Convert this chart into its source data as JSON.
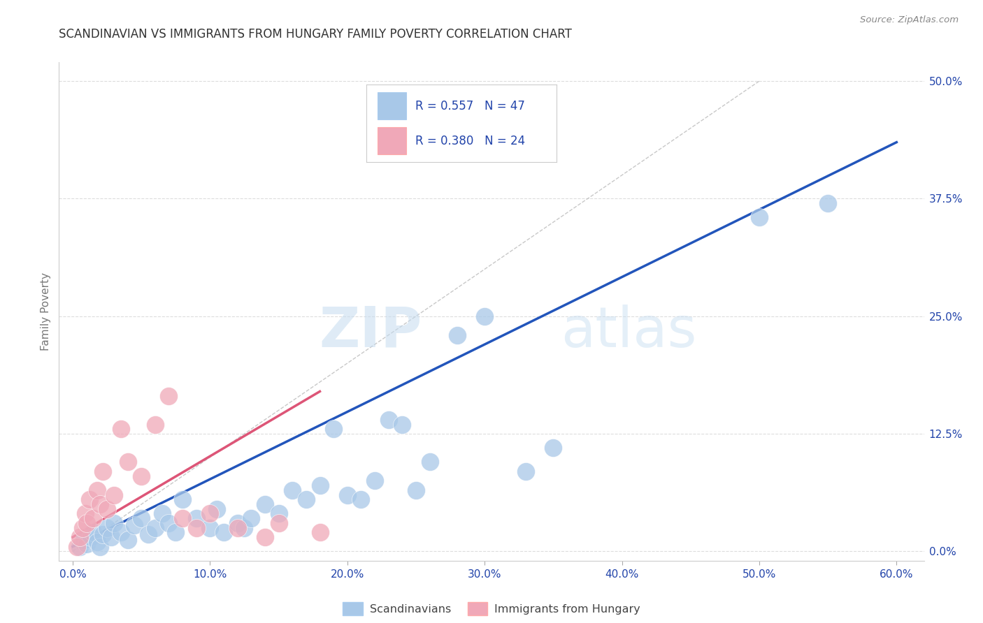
{
  "title": "SCANDINAVIAN VS IMMIGRANTS FROM HUNGARY FAMILY POVERTY CORRELATION CHART",
  "source": "Source: ZipAtlas.com",
  "xlabel_ticks": [
    "0.0%",
    "10.0%",
    "20.0%",
    "30.0%",
    "40.0%",
    "50.0%",
    "60.0%"
  ],
  "xlabel_vals": [
    0.0,
    10.0,
    20.0,
    30.0,
    40.0,
    50.0,
    60.0
  ],
  "ylabel": "Family Poverty",
  "ylabel_ticks": [
    "0.0%",
    "12.5%",
    "25.0%",
    "37.5%",
    "50.0%"
  ],
  "ylabel_vals": [
    0.0,
    12.5,
    25.0,
    37.5,
    50.0
  ],
  "xlim": [
    -1.0,
    62.0
  ],
  "ylim": [
    -1.0,
    52.0
  ],
  "blue_color": "#A8C8E8",
  "pink_color": "#F0A8B8",
  "blue_line_color": "#2255BB",
  "pink_line_color": "#DD5577",
  "diagonal_color": "#BBBBBB",
  "legend_r_blue": "0.557",
  "legend_n_blue": "47",
  "legend_r_pink": "0.380",
  "legend_n_pink": "24",
  "legend_text_color": "#2244AA",
  "watermark_zip": "ZIP",
  "watermark_atlas": "atlas",
  "scandinavians": [
    [
      0.5,
      0.5
    ],
    [
      0.8,
      1.2
    ],
    [
      1.0,
      0.8
    ],
    [
      1.3,
      1.5
    ],
    [
      1.5,
      2.0
    ],
    [
      1.8,
      1.0
    ],
    [
      2.0,
      0.5
    ],
    [
      2.2,
      1.8
    ],
    [
      2.5,
      2.5
    ],
    [
      2.8,
      1.5
    ],
    [
      3.0,
      3.0
    ],
    [
      3.5,
      2.0
    ],
    [
      4.0,
      1.2
    ],
    [
      4.5,
      2.8
    ],
    [
      5.0,
      3.5
    ],
    [
      5.5,
      1.8
    ],
    [
      6.0,
      2.5
    ],
    [
      6.5,
      4.0
    ],
    [
      7.0,
      3.0
    ],
    [
      7.5,
      2.0
    ],
    [
      8.0,
      5.5
    ],
    [
      9.0,
      3.5
    ],
    [
      10.0,
      2.5
    ],
    [
      10.5,
      4.5
    ],
    [
      11.0,
      2.0
    ],
    [
      12.0,
      3.0
    ],
    [
      12.5,
      2.5
    ],
    [
      13.0,
      3.5
    ],
    [
      14.0,
      5.0
    ],
    [
      15.0,
      4.0
    ],
    [
      16.0,
      6.5
    ],
    [
      17.0,
      5.5
    ],
    [
      18.0,
      7.0
    ],
    [
      19.0,
      13.0
    ],
    [
      20.0,
      6.0
    ],
    [
      21.0,
      5.5
    ],
    [
      22.0,
      7.5
    ],
    [
      23.0,
      14.0
    ],
    [
      24.0,
      13.5
    ],
    [
      25.0,
      6.5
    ],
    [
      26.0,
      9.5
    ],
    [
      28.0,
      23.0
    ],
    [
      30.0,
      25.0
    ],
    [
      33.0,
      8.5
    ],
    [
      35.0,
      11.0
    ],
    [
      50.0,
      35.5
    ],
    [
      55.0,
      37.0
    ]
  ],
  "hungary": [
    [
      0.3,
      0.5
    ],
    [
      0.5,
      1.5
    ],
    [
      0.7,
      2.5
    ],
    [
      0.9,
      4.0
    ],
    [
      1.0,
      3.0
    ],
    [
      1.2,
      5.5
    ],
    [
      1.5,
      3.5
    ],
    [
      1.8,
      6.5
    ],
    [
      2.0,
      5.0
    ],
    [
      2.2,
      8.5
    ],
    [
      2.5,
      4.5
    ],
    [
      3.0,
      6.0
    ],
    [
      3.5,
      13.0
    ],
    [
      4.0,
      9.5
    ],
    [
      5.0,
      8.0
    ],
    [
      6.0,
      13.5
    ],
    [
      7.0,
      16.5
    ],
    [
      8.0,
      3.5
    ],
    [
      9.0,
      2.5
    ],
    [
      10.0,
      4.0
    ],
    [
      12.0,
      2.5
    ],
    [
      14.0,
      1.5
    ],
    [
      15.0,
      3.0
    ],
    [
      18.0,
      2.0
    ]
  ],
  "blue_trendline_x": [
    0.0,
    60.0
  ],
  "blue_trendline_y": [
    0.5,
    43.5
  ],
  "pink_trendline_x": [
    0.0,
    18.0
  ],
  "pink_trendline_y": [
    1.5,
    17.0
  ],
  "diag_line_x": [
    0.0,
    50.0
  ],
  "diag_line_y": [
    0.0,
    50.0
  ]
}
